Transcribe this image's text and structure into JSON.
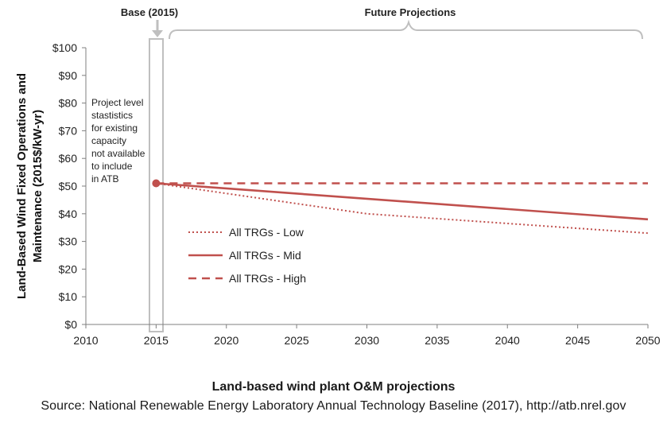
{
  "chart_data": {
    "type": "line",
    "title": "",
    "xlabel": "Land-based wind plant O&M projections",
    "ylabel": "Land-Based Wind Fixed Operations and Maintenance (2015$/kW-yr)",
    "ylabel_lines": [
      "Land-Based Wind Fixed Operations and",
      "Maintenance (2015$/kW-yr)"
    ],
    "xlim": [
      2010,
      2050
    ],
    "ylim": [
      0,
      100
    ],
    "x_ticks": [
      2010,
      2015,
      2020,
      2025,
      2030,
      2035,
      2040,
      2045,
      2050
    ],
    "y_ticks": [
      0,
      10,
      20,
      30,
      40,
      50,
      60,
      70,
      80,
      90,
      100
    ],
    "y_tick_labels": [
      "$0",
      "$10",
      "$20",
      "$30",
      "$40",
      "$50",
      "$60",
      "$70",
      "$80",
      "$90",
      "$100"
    ],
    "grid": false,
    "legend_position": "lower-left",
    "base_point": {
      "x": 2015,
      "y": 51
    },
    "series": [
      {
        "name": "All TRGs - Low",
        "style": "dotted",
        "color": "#c0504d",
        "x": [
          2015,
          2030,
          2050
        ],
        "y": [
          51,
          40,
          33
        ]
      },
      {
        "name": "All TRGs - Mid",
        "style": "solid",
        "color": "#c0504d",
        "x": [
          2015,
          2050
        ],
        "y": [
          51,
          38
        ]
      },
      {
        "name": "All TRGs - High",
        "style": "dashed",
        "color": "#c0504d",
        "x": [
          2015,
          2050
        ],
        "y": [
          51,
          51
        ]
      }
    ],
    "annotations": {
      "base_label": "Base (2015)",
      "future_label": "Future Projections",
      "note_lines": [
        "Project level",
        "stastistics",
        "for existing",
        "capacity",
        "not available",
        "to include",
        "in ATB"
      ]
    }
  },
  "source": "Source:  National Renewable Energy Laboratory Annual Technology Baseline (2017),  http://atb.nrel.gov",
  "colors": {
    "series": "#c0504d",
    "bracket": "#bfbfbf",
    "axis": "#7f7f7f"
  }
}
